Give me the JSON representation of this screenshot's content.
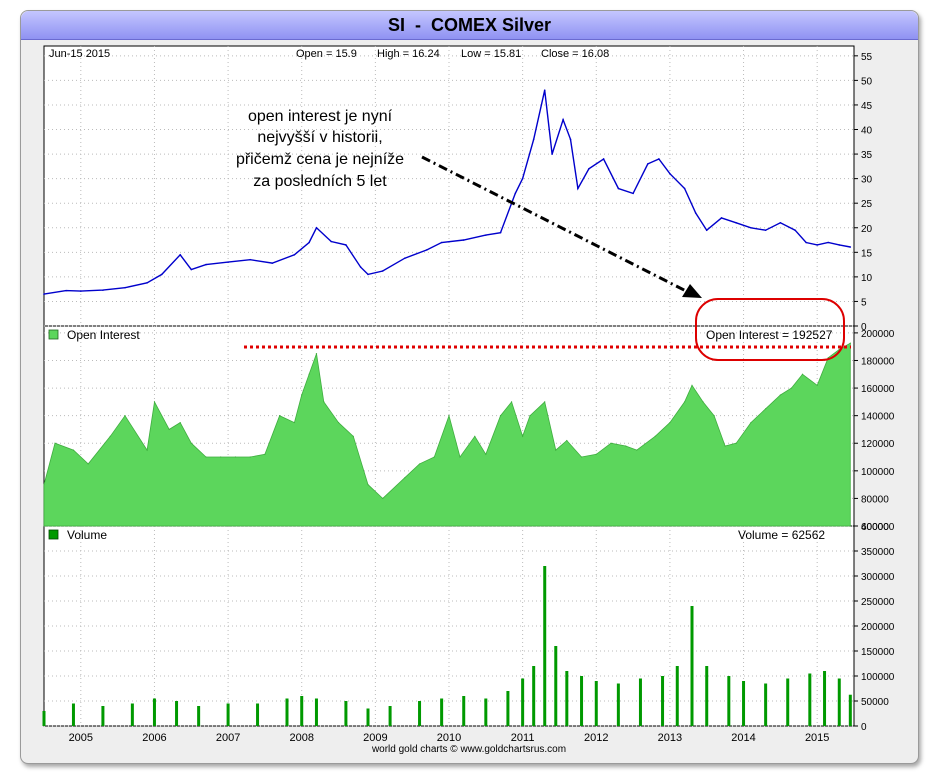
{
  "window": {
    "title": "SI  -  COMEX Silver"
  },
  "colors": {
    "price": "#0000cc",
    "open_interest": "#5cd65c",
    "volume": "#009900",
    "title_bar": "#a9abfa",
    "annotation": "#dd0000"
  },
  "price_panel": {
    "date_label": "Jun-15  2015",
    "open": "Open = 15.9",
    "high": "High = 16.24",
    "low": "Low = 15.81",
    "close": "Close = 16.08"
  },
  "annotation": {
    "lines": [
      "open interest je nyní",
      "nejvyšší v historii,",
      "přičemž cena je nejníže",
      "za posledních 5 let"
    ]
  },
  "oi_panel": {
    "legend": "Open Interest",
    "readout": "Open Interest = 192527"
  },
  "volume_panel": {
    "legend": "Volume",
    "readout": "Volume = 62562"
  },
  "footer": {
    "credit": "world gold charts © www.goldchartsrus.com"
  },
  "chart_data": [
    {
      "type": "line",
      "series": [
        {
          "name": "SI - COMEX Silver",
          "x": [
            2004.5,
            2004.8,
            2005.0,
            2005.3,
            2005.6,
            2005.9,
            2006.1,
            2006.35,
            2006.5,
            2006.7,
            2007.0,
            2007.3,
            2007.6,
            2007.9,
            2008.1,
            2008.2,
            2008.4,
            2008.6,
            2008.8,
            2008.9,
            2009.1,
            2009.4,
            2009.7,
            2009.9,
            2010.2,
            2010.5,
            2010.7,
            2010.9,
            2011.0,
            2011.15,
            2011.3,
            2011.4,
            2011.55,
            2011.65,
            2011.75,
            2011.9,
            2012.1,
            2012.3,
            2012.5,
            2012.7,
            2012.85,
            2013.0,
            2013.2,
            2013.35,
            2013.5,
            2013.7,
            2013.9,
            2014.1,
            2014.3,
            2014.5,
            2014.7,
            2014.85,
            2015.0,
            2015.15,
            2015.3,
            2015.45
          ],
          "y": [
            6.5,
            7.2,
            7.1,
            7.3,
            7.8,
            8.8,
            10.5,
            14.5,
            11.5,
            12.5,
            13.0,
            13.5,
            12.8,
            14.5,
            17.0,
            20.0,
            17.2,
            16.5,
            12.0,
            10.5,
            11.2,
            13.8,
            15.5,
            17.0,
            17.5,
            18.5,
            19.0,
            27.0,
            30.0,
            38.0,
            48.0,
            35.0,
            42.0,
            38.0,
            28.0,
            32.0,
            34.0,
            28.0,
            27.0,
            33.0,
            34.0,
            31.0,
            28.0,
            23.0,
            19.5,
            22.0,
            21.0,
            20.0,
            19.5,
            21.0,
            19.5,
            17.0,
            16.5,
            17.0,
            16.5,
            16.08
          ]
        }
      ],
      "y_ticks": [
        0,
        5,
        10,
        15,
        20,
        25,
        30,
        35,
        40,
        45,
        50,
        55
      ],
      "ylim": [
        0,
        57
      ]
    },
    {
      "type": "area",
      "series": [
        {
          "name": "Open Interest",
          "x": [
            2004.5,
            2004.65,
            2004.9,
            2005.1,
            2005.4,
            2005.6,
            2005.9,
            2006.0,
            2006.2,
            2006.35,
            2006.5,
            2006.7,
            2006.9,
            2007.1,
            2007.3,
            2007.5,
            2007.7,
            2007.9,
            2008.0,
            2008.1,
            2008.2,
            2008.3,
            2008.5,
            2008.7,
            2008.9,
            2009.1,
            2009.4,
            2009.6,
            2009.8,
            2010.0,
            2010.15,
            2010.35,
            2010.5,
            2010.7,
            2010.85,
            2011.0,
            2011.1,
            2011.3,
            2011.45,
            2011.6,
            2011.8,
            2012.0,
            2012.2,
            2012.4,
            2012.55,
            2012.8,
            2013.0,
            2013.2,
            2013.3,
            2013.45,
            2013.6,
            2013.75,
            2013.9,
            2014.1,
            2014.3,
            2014.5,
            2014.65,
            2014.8,
            2015.0,
            2015.15,
            2015.3,
            2015.45
          ],
          "y": [
            90000,
            120000,
            115000,
            105000,
            125000,
            140000,
            115000,
            150000,
            130000,
            135000,
            120000,
            110000,
            110000,
            110000,
            110000,
            112000,
            140000,
            135000,
            155000,
            170000,
            185000,
            150000,
            135000,
            125000,
            90000,
            80000,
            95000,
            105000,
            110000,
            140000,
            110000,
            125000,
            112000,
            140000,
            150000,
            125000,
            140000,
            150000,
            115000,
            122000,
            110000,
            112000,
            120000,
            118000,
            115000,
            125000,
            135000,
            150000,
            162000,
            150000,
            140000,
            118000,
            120000,
            135000,
            145000,
            155000,
            160000,
            170000,
            162000,
            182000,
            188000,
            192527
          ]
        }
      ],
      "y_ticks": [
        60000,
        80000,
        100000,
        120000,
        140000,
        160000,
        180000,
        200000
      ],
      "ylim": [
        60000,
        205000
      ]
    },
    {
      "type": "bar",
      "series": [
        {
          "name": "Volume",
          "x": [
            2004.5,
            2004.9,
            2005.3,
            2005.7,
            2006.0,
            2006.3,
            2006.6,
            2007.0,
            2007.4,
            2007.8,
            2008.0,
            2008.2,
            2008.6,
            2008.9,
            2009.2,
            2009.6,
            2009.9,
            2010.2,
            2010.5,
            2010.8,
            2011.0,
            2011.15,
            2011.3,
            2011.45,
            2011.6,
            2011.8,
            2012.0,
            2012.3,
            2012.6,
            2012.9,
            2013.1,
            2013.3,
            2013.5,
            2013.8,
            2014.0,
            2014.3,
            2014.6,
            2014.9,
            2015.1,
            2015.3,
            2015.45
          ],
          "y": [
            30000,
            45000,
            40000,
            45000,
            55000,
            50000,
            40000,
            45000,
            45000,
            55000,
            60000,
            55000,
            50000,
            35000,
            40000,
            50000,
            55000,
            60000,
            55000,
            70000,
            95000,
            120000,
            320000,
            160000,
            110000,
            100000,
            90000,
            85000,
            95000,
            100000,
            120000,
            240000,
            120000,
            100000,
            90000,
            85000,
            95000,
            105000,
            110000,
            95000,
            62562
          ]
        }
      ],
      "y_ticks": [
        0,
        50000,
        100000,
        150000,
        200000,
        250000,
        300000,
        350000,
        400000
      ],
      "ylim": [
        0,
        400000
      ]
    }
  ],
  "x_axis": {
    "labels": [
      "2005",
      "2006",
      "2007",
      "2008",
      "2009",
      "2010",
      "2011",
      "2012",
      "2013",
      "2014",
      "2015"
    ]
  }
}
